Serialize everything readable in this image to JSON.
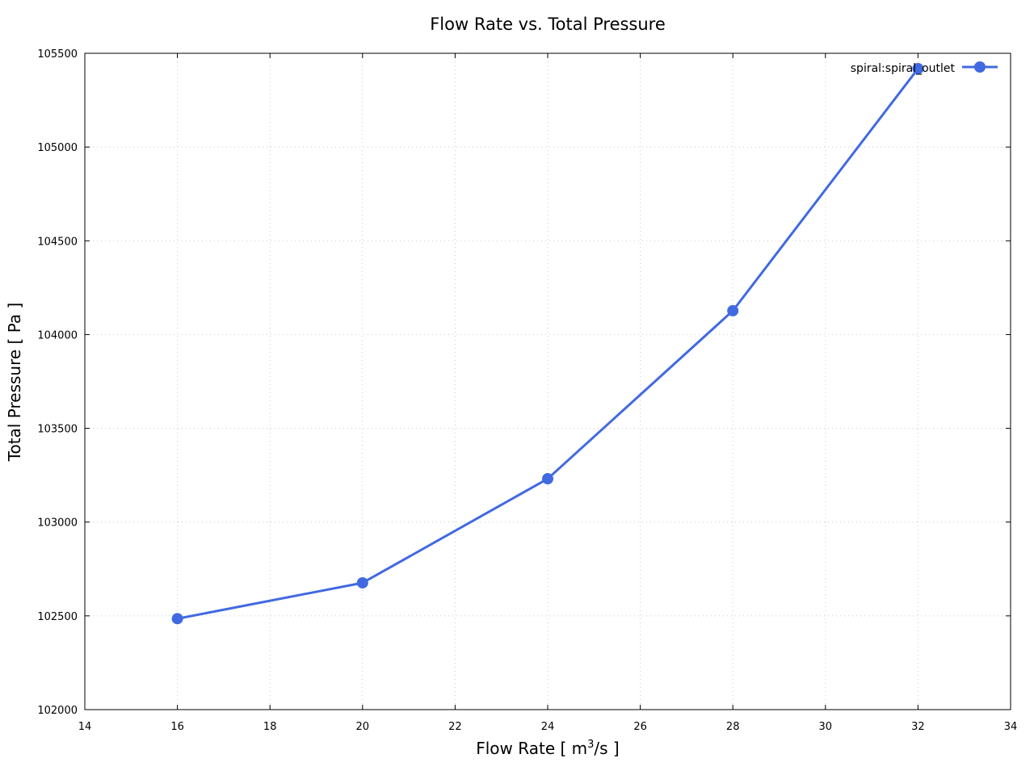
{
  "chart_data": {
    "type": "line",
    "title": "Flow Rate vs. Total Pressure",
    "xlabel": "Flow Rate [ m",
    "xlabel_sup": "3",
    "xlabel_suffix": "/s ]",
    "ylabel": "Total Pressure [ Pa ]",
    "xlim": [
      14,
      34
    ],
    "ylim": [
      102000,
      105500
    ],
    "xticks": [
      14,
      16,
      18,
      20,
      22,
      24,
      26,
      28,
      30,
      32,
      34
    ],
    "yticks": [
      102000,
      102500,
      103000,
      103500,
      104000,
      104500,
      105000,
      105500
    ],
    "grid": true,
    "legend_position": "top-right",
    "series": [
      {
        "name": "spiral:spiral_outlet",
        "color": "#4169e1",
        "x": [
          16,
          20,
          24,
          28,
          32
        ],
        "y": [
          102485,
          102676,
          103231,
          104127,
          105418
        ]
      }
    ]
  }
}
